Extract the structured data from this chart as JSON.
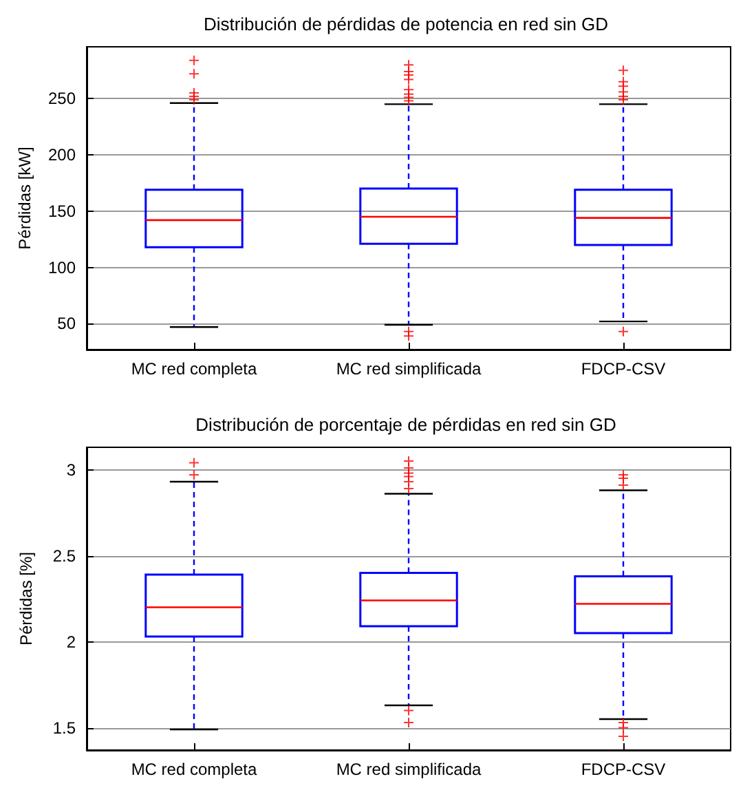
{
  "chart_data": [
    {
      "type": "box",
      "title": "Distribución de pérdidas de potencia en red sin GD",
      "ylabel": "Pérdidas [kW]",
      "categories": [
        "MC red completa",
        "MC red simplificada",
        "FDCP-CSV"
      ],
      "ylim": [
        27,
        296
      ],
      "yticks": [
        50,
        100,
        150,
        200,
        250
      ],
      "grid": "y",
      "marker": "cross",
      "series": [
        {
          "type": "box",
          "color": "#0000ff",
          "boxes": [
            {
              "low": 47,
              "q1": 118,
              "median": 142,
              "q3": 169,
              "high": 246
            },
            {
              "low": 49,
              "q1": 121,
              "median": 145,
              "q3": 170,
              "high": 245
            },
            {
              "low": 52,
              "q1": 120,
              "median": 144,
              "q3": 169,
              "high": 245
            }
          ]
        },
        {
          "type": "scatter",
          "color": "#ff0000",
          "x": [
            "MC red completa",
            "MC red completa",
            "MC red completa",
            "MC red completa",
            "MC red completa",
            "MC red simplificada",
            "MC red simplificada",
            "MC red simplificada",
            "MC red simplificada",
            "MC red simplificada",
            "MC red simplificada",
            "MC red simplificada",
            "MC red simplificada",
            "MC red simplificada",
            "MC red simplificada",
            "FDCP-CSV",
            "FDCP-CSV",
            "FDCP-CSV",
            "FDCP-CSV",
            "FDCP-CSV",
            "FDCP-CSV",
            "FDCP-CSV"
          ],
          "values": [
            284,
            272,
            255,
            252,
            249,
            280,
            274,
            271,
            267,
            258,
            254,
            251,
            248,
            43,
            39,
            275,
            265,
            261,
            256,
            252,
            249,
            43
          ]
        }
      ]
    },
    {
      "type": "box",
      "title": "Distribución de porcentaje de pérdidas en red sin GD",
      "ylabel": "Pérdidas [%]",
      "categories": [
        "MC red completa",
        "MC red simplificada",
        "FDCP-CSV"
      ],
      "ylim": [
        1.37,
        3.13
      ],
      "yticks": [
        1.5,
        2,
        2.5,
        3
      ],
      "grid": "y",
      "marker": "cross",
      "series": [
        {
          "type": "box",
          "color": "#0000ff",
          "boxes": [
            {
              "low": 1.49,
              "q1": 2.03,
              "median": 2.2,
              "q3": 2.39,
              "high": 2.93
            },
            {
              "low": 1.63,
              "q1": 2.09,
              "median": 2.24,
              "q3": 2.4,
              "high": 2.86
            },
            {
              "low": 1.55,
              "q1": 2.05,
              "median": 2.22,
              "q3": 2.38,
              "high": 2.88
            }
          ]
        },
        {
          "type": "scatter",
          "color": "#ff0000",
          "x": [
            "MC red completa",
            "MC red completa",
            "MC red simplificada",
            "MC red simplificada",
            "MC red simplificada",
            "MC red simplificada",
            "MC red simplificada",
            "MC red simplificada",
            "MC red simplificada",
            "MC red simplificada",
            "FDCP-CSV",
            "FDCP-CSV",
            "FDCP-CSV",
            "FDCP-CSV",
            "FDCP-CSV",
            "FDCP-CSV"
          ],
          "values": [
            3.04,
            2.97,
            3.05,
            3.01,
            2.98,
            2.96,
            2.93,
            2.89,
            1.6,
            1.53,
            2.97,
            2.95,
            2.91,
            1.53,
            1.5,
            1.45
          ]
        }
      ]
    }
  ]
}
